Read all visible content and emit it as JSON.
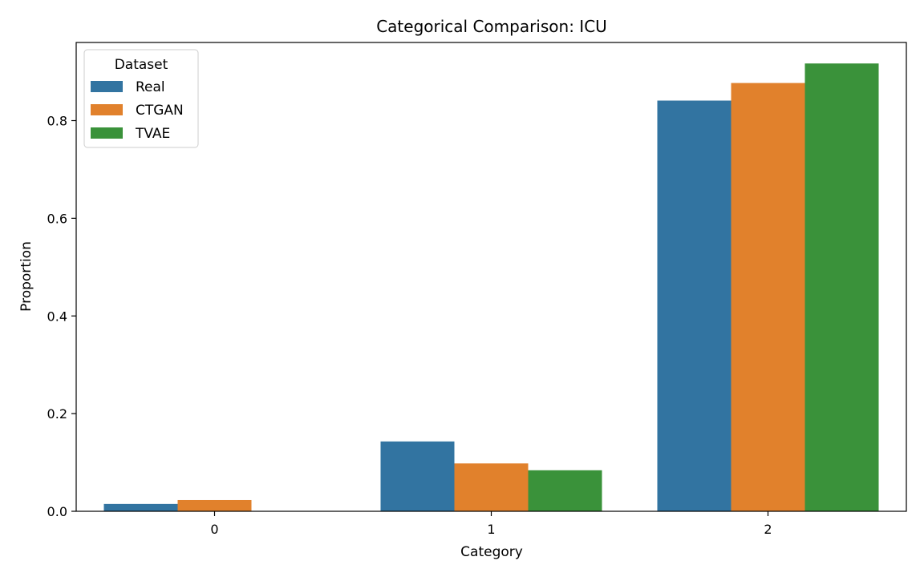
{
  "chart_data": {
    "type": "bar",
    "title": "Categorical Comparison: ICU",
    "xlabel": "Category",
    "ylabel": "Proportion",
    "categories": [
      "0",
      "1",
      "2"
    ],
    "ylim": [
      0,
      0.96
    ],
    "yticks": [
      0.0,
      0.2,
      0.4,
      0.6,
      0.8
    ],
    "grid": false,
    "legend": {
      "title": "Dataset",
      "placement": "top-left"
    },
    "series": [
      {
        "name": "Real",
        "color": "#3274a1",
        "values": [
          0.015,
          0.143,
          0.841
        ]
      },
      {
        "name": "CTGAN",
        "color": "#e1812c",
        "values": [
          0.023,
          0.098,
          0.877
        ]
      },
      {
        "name": "TVAE",
        "color": "#3a923a",
        "values": [
          0.0,
          0.084,
          0.917
        ]
      }
    ]
  }
}
